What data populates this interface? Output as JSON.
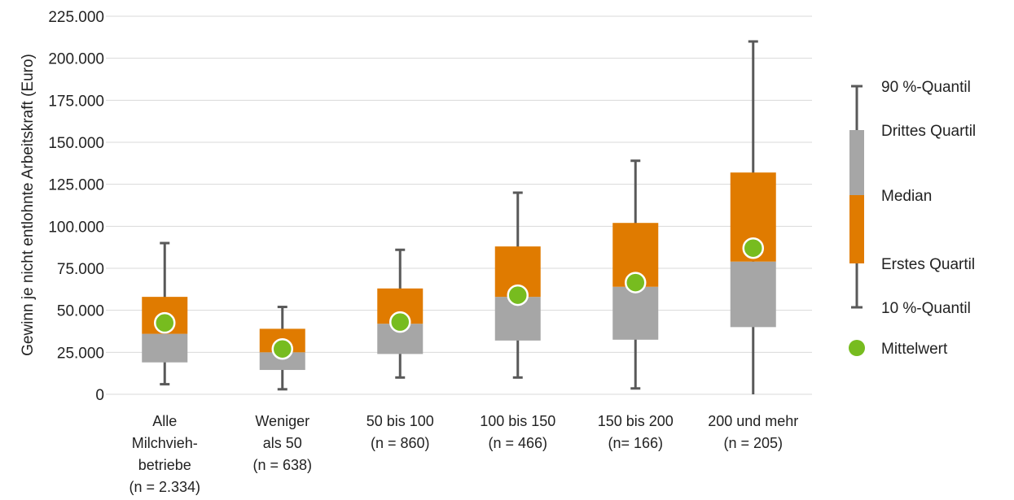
{
  "chart_data": {
    "type": "boxplot",
    "ylabel": "Gewinn je nicht entlohnte Arbeitskraft (Euro)",
    "ylim": [
      0,
      225000
    ],
    "yticks": [
      0,
      25000,
      50000,
      75000,
      100000,
      125000,
      150000,
      175000,
      200000,
      225000
    ],
    "ytick_labels": [
      "0",
      "25.000",
      "50.000",
      "75.000",
      "100.000",
      "125.000",
      "150.000",
      "175.000",
      "200.000",
      "225.000"
    ],
    "grid": true,
    "legend_position": "right",
    "colors": {
      "lower_box": "#a6a6a6",
      "upper_box": "#e07b00",
      "mean": "#77bc1f",
      "whisker": "#595959",
      "grid": "#d9d9d9"
    },
    "categories": [
      {
        "lines": [
          "Alle",
          "Milchvieh-",
          "betriebe",
          "(n = 2.334)"
        ],
        "p10": 6000,
        "q1": 19000,
        "median": 36000,
        "q3": 58000,
        "p90": 90000,
        "mean": 42500
      },
      {
        "lines": [
          "Weniger",
          "als 50",
          "(n = 638)"
        ],
        "p10": 3000,
        "q1": 14500,
        "median": 25000,
        "q3": 39000,
        "p90": 52000,
        "mean": 27000
      },
      {
        "lines": [
          "50 bis 100",
          "(n = 860)"
        ],
        "p10": 10000,
        "q1": 24000,
        "median": 42000,
        "q3": 63000,
        "p90": 86000,
        "mean": 43000
      },
      {
        "lines": [
          "100 bis 150",
          "(n = 466)"
        ],
        "p10": 10000,
        "q1": 32000,
        "median": 58000,
        "q3": 88000,
        "p90": 120000,
        "mean": 59000
      },
      {
        "lines": [
          "150 bis 200",
          "(n= 166)"
        ],
        "p10": 3500,
        "q1": 32500,
        "median": 64000,
        "q3": 102000,
        "p90": 139000,
        "mean": 66500
      },
      {
        "lines": [
          "200 und mehr",
          "(n = 205)"
        ],
        "p10": 0,
        "q1": 40000,
        "median": 79000,
        "q3": 132000,
        "p90": 210000,
        "mean": 87000
      }
    ],
    "legend": {
      "p90": "90 %-Quantil",
      "q3": "Drittes Quartil",
      "median": "Median",
      "q1": "Erstes Quartil",
      "p10": "10 %-Quantil",
      "mean": "Mittelwert"
    }
  }
}
